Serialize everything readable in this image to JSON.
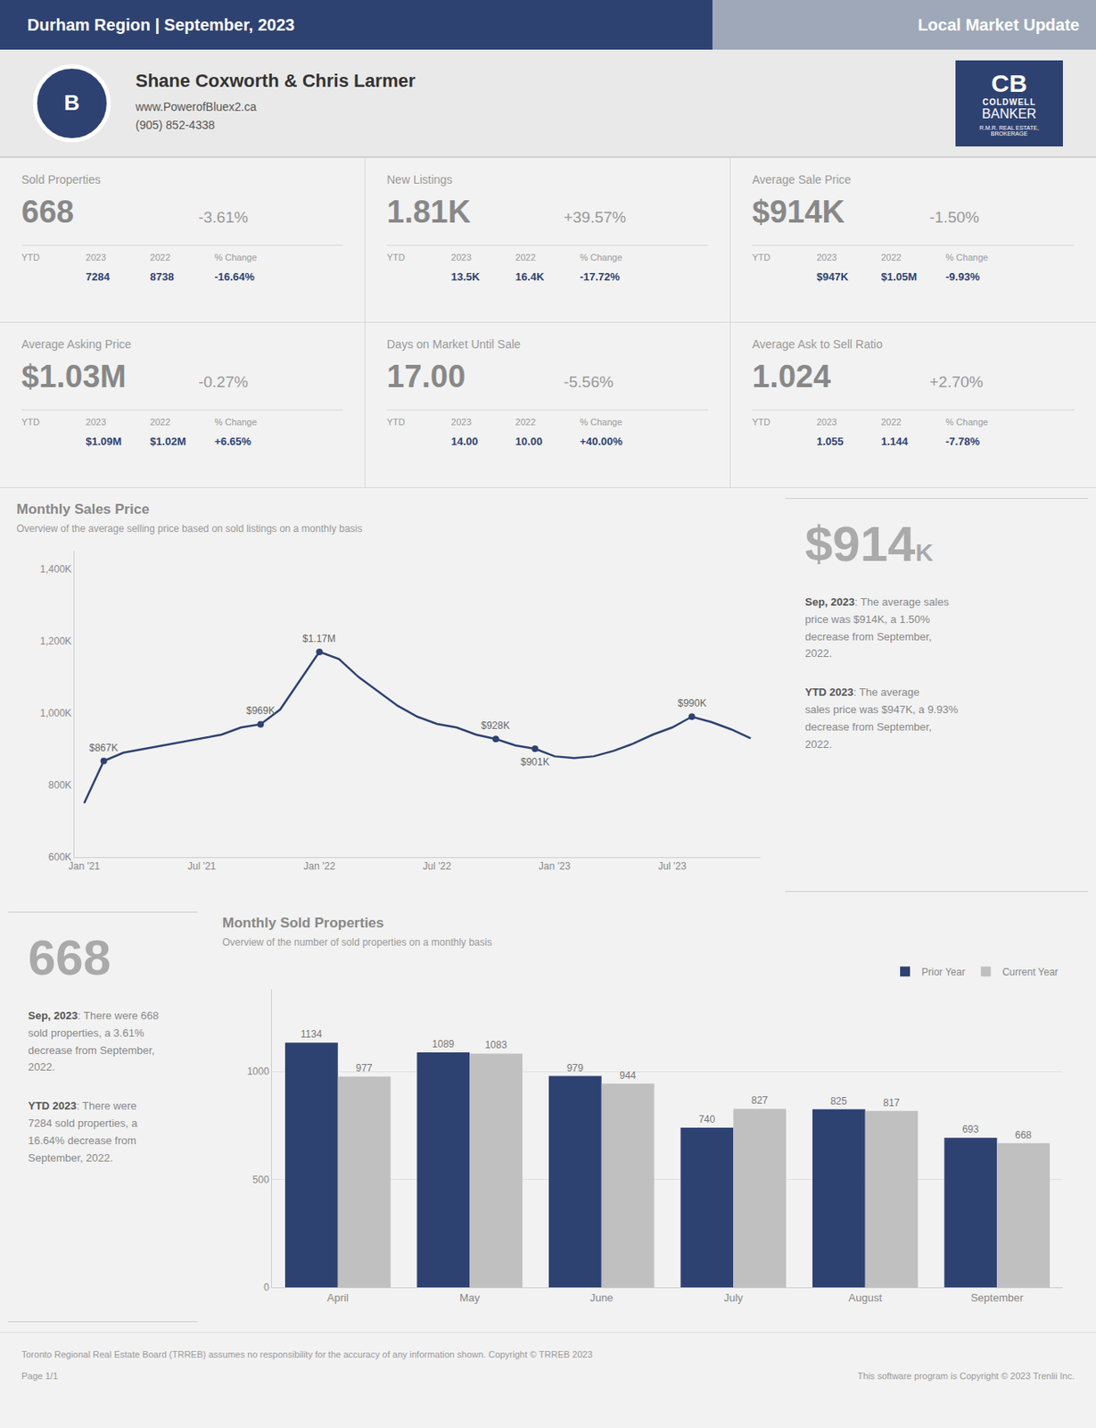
{
  "header": {
    "left": "Durham Region | September, 2023",
    "right": "Local Market Update",
    "colors": [
      "#2E4272",
      "#9EA8B8"
    ]
  },
  "agent": {
    "name": "Shane Coxworth & Chris Larmer",
    "website": "www.PowerofBluex2.ca",
    "phone": "(905) 852-4338",
    "logo": "B",
    "brand": [
      "CB",
      "COLDWELL",
      "BANKER",
      "R.M.R. REAL ESTATE,\nBROKERAGE"
    ],
    "color": "#2E4272"
  },
  "ytd_headers": [
    "YTD",
    "2023",
    "2022",
    "% Change"
  ],
  "stats": [
    {
      "label": "Sold Properties",
      "value": "668",
      "change": "-3.61%",
      "ytd": [
        "7284",
        "8738",
        "-16.64%"
      ]
    },
    {
      "label": "New Listings",
      "value": "1.81K",
      "change": "+39.57%",
      "ytd": [
        "13.5K",
        "16.4K",
        "-17.72%"
      ]
    },
    {
      "label": "Average Sale Price",
      "value": "$914K",
      "change": "-1.50%",
      "ytd": [
        "$947K",
        "$1.05M",
        "-9.93%"
      ]
    },
    {
      "label": "Average Asking Price",
      "value": "$1.03M",
      "change": "-0.27%",
      "ytd": [
        "$1.09M",
        "$1.02M",
        "+6.65%"
      ]
    },
    {
      "label": "Days on Market Until Sale",
      "value": "17.00",
      "change": "-5.56%",
      "ytd": [
        "14.00",
        "10.00",
        "+40.00%"
      ]
    },
    {
      "label": "Average Ask to Sell Ratio",
      "value": "1.024",
      "change": "+2.70%",
      "ytd": [
        "1.055",
        "1.144",
        "-7.78%"
      ]
    }
  ],
  "chart_data": [
    {
      "type": "line",
      "title": "Monthly Sales Price",
      "subtitle": "Overview of the average selling price based on sold listings on a monthly basis",
      "categories": [
        "Jan '21",
        null,
        null,
        null,
        null,
        null,
        "Jul '21",
        null,
        null,
        null,
        null,
        null,
        "Jan '22",
        null,
        null,
        null,
        null,
        null,
        "Jul '22",
        null,
        null,
        null,
        null,
        null,
        "Jan '23",
        null,
        null,
        null,
        null,
        null,
        "Jul '23",
        null,
        null,
        null,
        null
      ],
      "values": [
        750000,
        867000,
        890000,
        900000,
        910000,
        920000,
        930000,
        940000,
        960000,
        969000,
        1010000,
        1090000,
        1170000,
        1150000,
        1100000,
        1060000,
        1020000,
        990000,
        970000,
        960000,
        940000,
        928000,
        910000,
        901000,
        880000,
        875000,
        880000,
        895000,
        915000,
        940000,
        960000,
        990000,
        975000,
        955000,
        930000
      ],
      "color": "#2E4272",
      "ylim": [
        600000,
        1450000
      ],
      "yticks": [
        {
          "value": 600000,
          "label": "600K"
        },
        {
          "value": 800000,
          "label": "800K"
        },
        {
          "value": 1000000,
          "label": "1,000K"
        },
        {
          "value": 1200000,
          "label": "1,200K"
        },
        {
          "value": 1400000,
          "label": "1,400K"
        }
      ],
      "grid": false,
      "annotations": [
        {
          "x": 1,
          "y": 867000,
          "text": "$867K",
          "position": "above"
        },
        {
          "x": 9,
          "y": 969000,
          "text": "$969K",
          "position": "above"
        },
        {
          "x": 12,
          "y": 1170000,
          "text": "$1.17M",
          "position": "above"
        },
        {
          "x": 21,
          "y": 928000,
          "text": "$928K",
          "position": "above"
        },
        {
          "x": 23,
          "y": 901000,
          "text": "$901K",
          "position": "below"
        },
        {
          "x": 31,
          "y": 990000,
          "text": "$990K",
          "position": "above"
        }
      ],
      "panel": {
        "value": "$914",
        "unit": "K",
        "notes": [
          {
            "head": "Sep, 2023",
            "text": ": The average sales\nprice was $914K, a 1.50%\ndecrease from September,\n2022."
          },
          {
            "head": "YTD 2023",
            "text": ": The average\nsales price was $947K, a 9.93%\ndecrease from September,\n2022."
          }
        ]
      }
    },
    {
      "type": "bar",
      "title": "Monthly Sold Properties",
      "subtitle": "Overview of the number of sold properties on a monthly basis",
      "categories": [
        "April",
        "May",
        "June",
        "July",
        "August",
        "September"
      ],
      "series": [
        {
          "name": "Prior Year",
          "color": "#2E4272",
          "values": [
            1134,
            1089,
            979,
            740,
            825,
            693
          ]
        },
        {
          "name": "Current Year",
          "color": "#C0C0C0",
          "values": [
            977,
            1083,
            944,
            827,
            817,
            668
          ]
        }
      ],
      "ylim": [
        0,
        1380
      ],
      "yticks": [
        0,
        500,
        1000
      ],
      "grid": true,
      "data_labels": true,
      "legend": "top right",
      "panel": {
        "value": "668",
        "notes": [
          {
            "head": "Sep, 2023",
            "text": ": There were 668\nsold properties, a 3.61%\ndecrease from September,\n2022."
          },
          {
            "head": "YTD 2023",
            "text": ": There were\n7284 sold properties, a\n16.64% decrease from\nSeptember, 2022."
          }
        ]
      }
    }
  ],
  "footer": {
    "left": "Toronto Regional Real Estate Board (TRREB) assumes no responsibility for the accuracy of any information shown. Copyright © TRREB 2023",
    "page": "Page 1/1",
    "right": "This software program is Copyright © 2023 Trenlii Inc."
  }
}
